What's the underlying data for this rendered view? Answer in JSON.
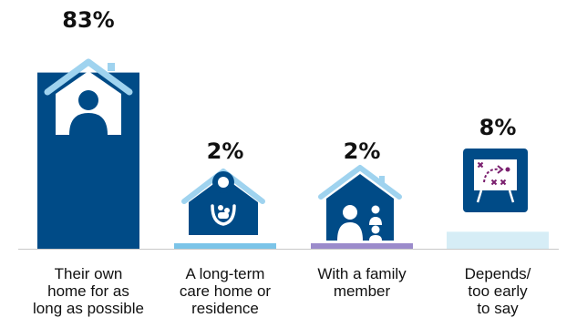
{
  "chart_data": {
    "type": "bar",
    "title": "",
    "xlabel": "",
    "ylabel": "",
    "ylim": [
      0,
      100
    ],
    "categories": [
      "Their own\nhome for as\nlong as possible",
      "A long-term\ncare home or\nresidence",
      "With a family\nmember",
      "Depends/\ntoo early\nto say"
    ],
    "values": [
      83,
      2,
      2,
      8
    ],
    "value_labels": [
      "83%",
      "2%",
      "2%",
      "8%"
    ],
    "bar_colors": [
      "#004B87",
      "#7BC4E8",
      "#9B8BCB",
      "#D6EDF6"
    ],
    "icons": [
      "house-person-icon",
      "care-home-icon",
      "family-house-icon",
      "strategy-board-icon"
    ],
    "grid": false,
    "legend": "none"
  },
  "colors": {
    "icon_dark": "#004B87",
    "icon_light": "#9FD3EF",
    "baseline": "#c8c8c8",
    "board_accent": "#7A1F6E"
  }
}
